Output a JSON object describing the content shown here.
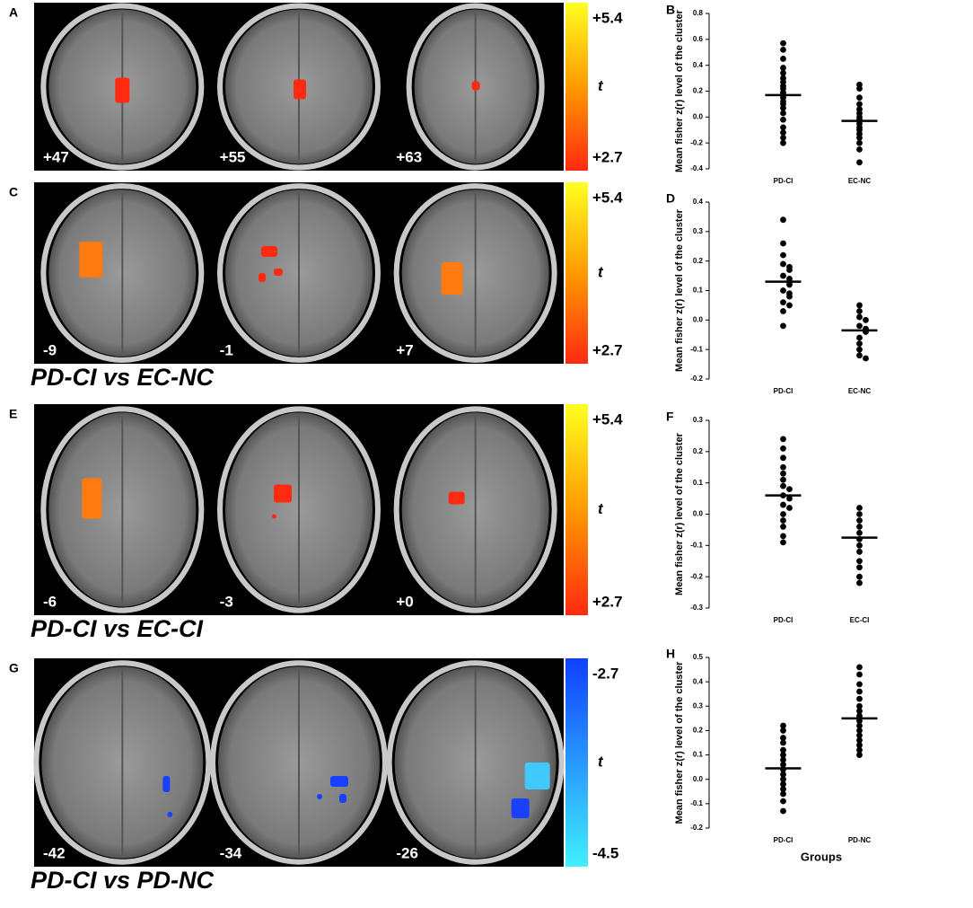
{
  "brain_panels": [
    {
      "label": "A",
      "slices": [
        "+47",
        "+55",
        "+63"
      ],
      "colorbar": {
        "top": "+5.4",
        "mid": "t",
        "bottom": "+2.7"
      }
    },
    {
      "label": "C",
      "slices": [
        "-9",
        "-1",
        "+7"
      ],
      "colorbar": {
        "top": "+5.4",
        "mid": "t",
        "bottom": "+2.7"
      },
      "comparison": "PD-CI vs EC-NC"
    },
    {
      "label": "E",
      "slices": [
        "-6",
        "-3",
        "+0"
      ],
      "colorbar": {
        "top": "+5.4",
        "mid": "t",
        "bottom": "+2.7"
      },
      "comparison": "PD-CI vs EC-CI"
    },
    {
      "label": "G",
      "slices": [
        "-42",
        "-34",
        "-26"
      ],
      "colorbar": {
        "top": "-2.7",
        "mid": "t",
        "bottom": "-4.5"
      },
      "comparison": "PD-CI vs PD-NC"
    }
  ],
  "chart_data": [
    {
      "type": "strip",
      "panel_label": "B",
      "ylabel": "Mean fisher z(r) level of the cluster",
      "categories": [
        "PD-CI",
        "EC-NC"
      ],
      "groups": [
        [
          0.57,
          0.52,
          0.45,
          0.38,
          0.34,
          0.3,
          0.27,
          0.24,
          0.22,
          0.19,
          0.17,
          0.15,
          0.12,
          0.1,
          0.07,
          0.03,
          -0.02,
          -0.08,
          -0.12,
          -0.16,
          -0.2
        ],
        [
          0.25,
          0.22,
          0.15,
          0.1,
          0.06,
          0.03,
          0.0,
          -0.02,
          -0.05,
          -0.08,
          -0.1,
          -0.13,
          -0.16,
          -0.2,
          -0.25,
          -0.35
        ]
      ],
      "means": [
        0.17,
        -0.03
      ],
      "ylim": [
        -0.4,
        0.8
      ],
      "yticks": [
        -0.4,
        -0.2,
        {
          "value": 0,
          "label": "0.0"
        },
        0.2,
        0.4,
        0.6,
        0.8
      ]
    },
    {
      "type": "strip",
      "panel_label": "D",
      "ylabel": "Mean fisher z(r) level of the cluster",
      "categories": [
        "PD-CI",
        "EC-NC"
      ],
      "groups": [
        [
          0.34,
          0.26,
          0.22,
          0.19,
          0.18,
          0.17,
          0.15,
          0.14,
          0.13,
          0.12,
          0.1,
          0.09,
          0.08,
          0.06,
          0.05,
          0.03,
          -0.02
        ],
        [
          0.05,
          0.03,
          0.01,
          0.0,
          -0.02,
          -0.03,
          -0.04,
          -0.06,
          -0.08,
          -0.1,
          -0.12,
          -0.13
        ]
      ],
      "means": [
        0.13,
        -0.035
      ],
      "ylim": [
        -0.2,
        0.4
      ],
      "yticks": [
        -0.2,
        -0.1,
        {
          "value": 0,
          "label": "0.0"
        },
        0.1,
        0.2,
        0.3,
        0.4
      ]
    },
    {
      "type": "strip",
      "panel_label": "F",
      "ylabel": "Mean fisher z(r) level of the cluster",
      "categories": [
        "PD-CI",
        "EC-CI"
      ],
      "groups": [
        [
          0.24,
          0.21,
          0.18,
          0.15,
          0.13,
          0.11,
          0.09,
          0.08,
          0.06,
          0.05,
          0.03,
          0.02,
          0.0,
          -0.02,
          -0.04,
          -0.07,
          -0.09
        ],
        [
          0.02,
          0.0,
          -0.02,
          -0.04,
          -0.06,
          -0.08,
          -0.1,
          -0.12,
          -0.15,
          -0.17,
          -0.2,
          -0.22
        ]
      ],
      "means": [
        0.06,
        -0.075
      ],
      "ylim": [
        -0.3,
        0.3
      ],
      "yticks": [
        -0.3,
        -0.2,
        -0.1,
        {
          "value": 0,
          "label": "0.0"
        },
        0.1,
        0.2,
        0.3
      ]
    },
    {
      "type": "strip",
      "panel_label": "H",
      "ylabel": "Mean fisher z(r) level of the cluster",
      "xlabel": "Groups",
      "categories": [
        "PD-CI",
        "PD-NC"
      ],
      "groups": [
        [
          0.22,
          0.2,
          0.17,
          0.15,
          0.12,
          0.1,
          0.08,
          0.06,
          0.04,
          0.02,
          0.0,
          -0.02,
          -0.04,
          -0.06,
          -0.09,
          -0.13
        ],
        [
          0.46,
          0.43,
          0.39,
          0.36,
          0.33,
          0.3,
          0.28,
          0.26,
          0.24,
          0.22,
          0.2,
          0.18,
          0.16,
          0.14,
          0.12,
          0.1
        ]
      ],
      "means": [
        0.045,
        0.25
      ],
      "ylim": [
        -0.2,
        0.5
      ],
      "yticks": [
        -0.2,
        -0.1,
        {
          "value": 0,
          "label": "0.0"
        },
        0.1,
        0.2,
        0.3,
        0.4,
        0.5
      ]
    }
  ]
}
